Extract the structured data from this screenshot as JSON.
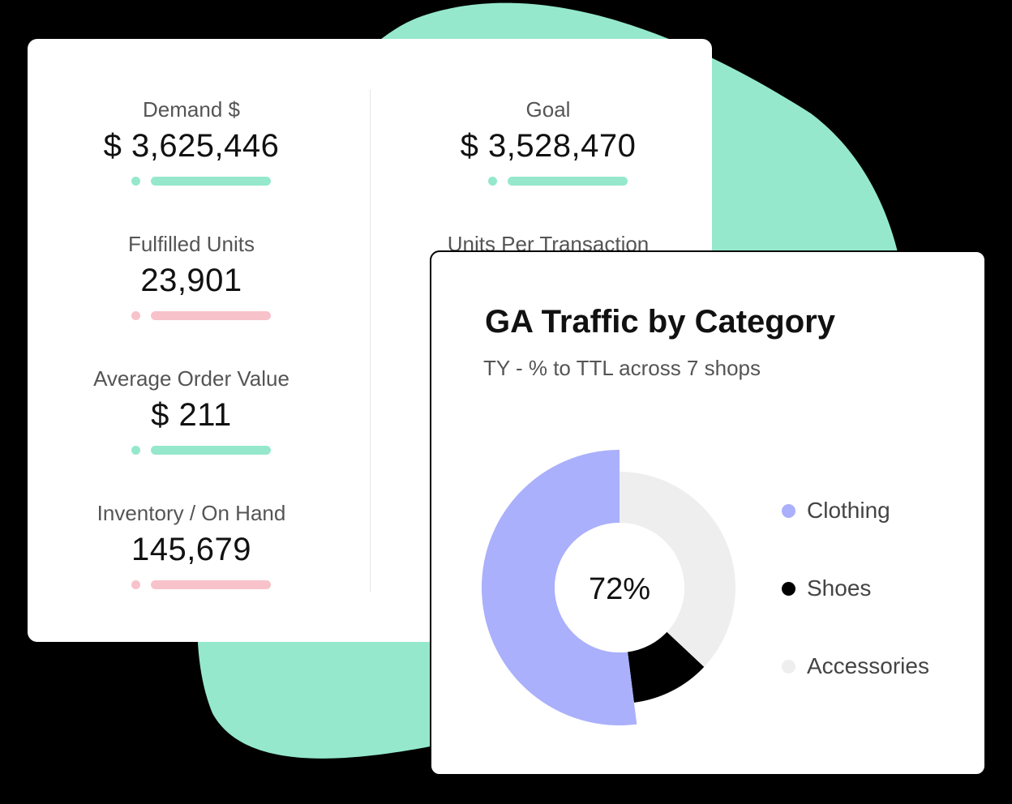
{
  "kpis": [
    {
      "label": "Demand $",
      "value": "$ 3,625,446",
      "status": "good"
    },
    {
      "label": "Fulfilled Units",
      "value": "23,901",
      "status": "bad"
    },
    {
      "label": "Average Order Value",
      "value": "$ 211",
      "status": "good"
    },
    {
      "label": "Inventory / On Hand",
      "value": "145,679",
      "status": "bad"
    },
    {
      "label": "Goal",
      "value": "$ 3,528,470",
      "status": "good"
    },
    {
      "label": "Units Per Transaction",
      "value": "",
      "status": ""
    }
  ],
  "colors": {
    "background": "#000000",
    "blob": "#95e8cc",
    "good": "#95e8cc",
    "bad": "#f8c2ca"
  },
  "chart": {
    "title": "GA Traffic by Category",
    "subtitle": "TY - % to TTL across 7 shops",
    "center_label": "72%",
    "legend": [
      {
        "label": "Clothing",
        "color": "#aab0fb"
      },
      {
        "label": "Shoes",
        "color": "#000000"
      },
      {
        "label": "Accessories",
        "color": "#eeeeee"
      }
    ]
  },
  "chart_data": {
    "type": "pie",
    "title": "GA Traffic by Category",
    "subtitle": "TY - % to TTL across 7 shops",
    "categories": [
      "Clothing",
      "Shoes",
      "Accessories"
    ],
    "values": [
      52,
      11,
      37
    ],
    "center_label": "72%",
    "legend_position": "right"
  }
}
